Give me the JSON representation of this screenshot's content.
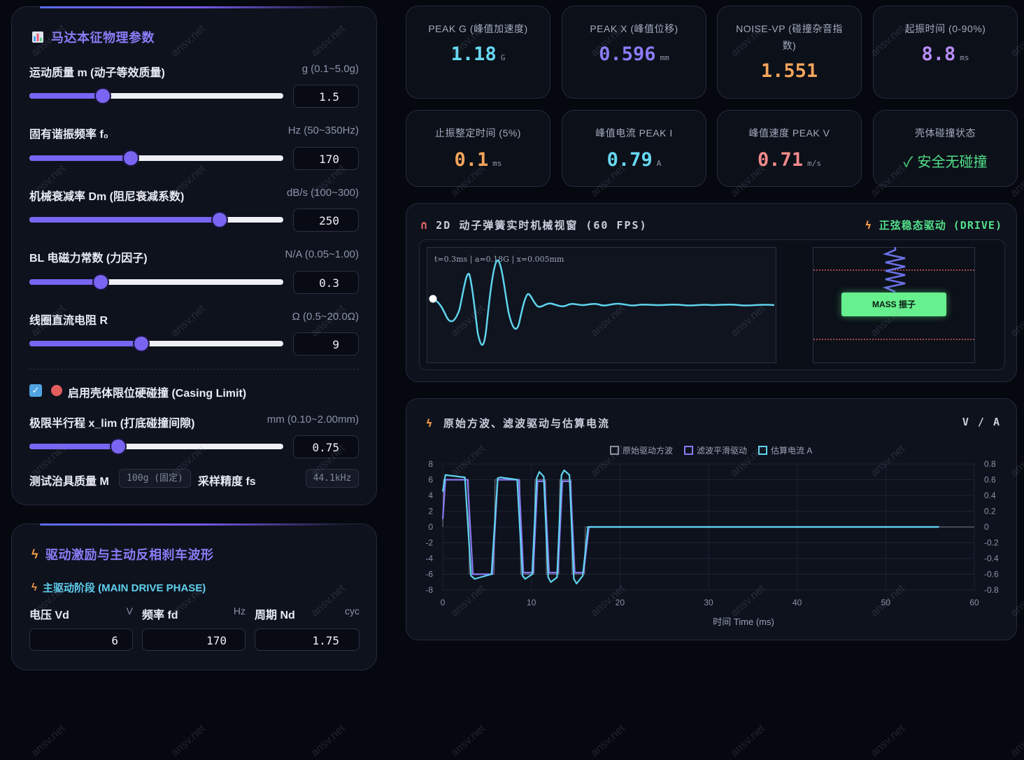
{
  "params_panel": {
    "title": "马达本征物理参数",
    "mass": {
      "label": "运动质量 m (动子等效质量)",
      "unit": "g (0.1~5.0g)",
      "value": "1.5",
      "level": 0.29
    },
    "freq": {
      "label": "固有谐振频率 f₀",
      "unit": "Hz (50~350Hz)",
      "value": "170",
      "level": 0.4
    },
    "damping": {
      "label": "机械衰减率 Dm (阻尼衰减系数)",
      "unit": "dB/s (100~300)",
      "value": "250",
      "level": 0.75
    },
    "bl": {
      "label": "BL 电磁力常数 (力因子)",
      "unit": "N/A (0.05~1.00)",
      "value": "0.3",
      "level": 0.28
    },
    "resistance": {
      "label": "线圈直流电阻 R",
      "unit": "Ω (0.5~20.0Ω)",
      "value": "9",
      "level": 0.44
    },
    "casing": {
      "label": "启用壳体限位硬碰撞 (Casing Limit)",
      "checked": true
    },
    "xlim": {
      "label": "极限半行程 x_lim (打底碰撞间隙)",
      "unit": "mm (0.10~2.00mm)",
      "value": "0.75",
      "level": 0.35
    },
    "fixture": {
      "label": "测试治具质量 M",
      "value": "100g (固定)"
    },
    "sampling": {
      "label": "采样精度 fs",
      "value": "44.1kHz"
    }
  },
  "drive_panel": {
    "title": "驱动激励与主动反相刹车波形",
    "phase": "主驱动阶段 (MAIN DRIVE PHASE)",
    "voltage": {
      "label": "电压 Vd",
      "unit": "V",
      "value": "6"
    },
    "frequency": {
      "label": "频率 fd",
      "unit": "Hz",
      "value": "170"
    },
    "cycles": {
      "label": "周期 Nd",
      "unit": "cyc",
      "value": "1.75"
    }
  },
  "stats": [
    {
      "label": "PEAK G (峰值加速度)",
      "value": "1.18",
      "unit": "G",
      "color": "#67d8f2"
    },
    {
      "label": "PEAK X (峰值位移)",
      "value": "0.596",
      "unit": "mm",
      "color": "#8c7cf6"
    },
    {
      "label": "NOISE-VP (碰撞杂音指数)",
      "value": "1.551",
      "unit": "",
      "color": "#f3a55b"
    },
    {
      "label": "起振时间 (0-90%)",
      "value": "8.8",
      "unit": "ms",
      "color": "#b78cf4"
    },
    {
      "label": "止振整定时间 (5%)",
      "value": "0.1",
      "unit": "ms",
      "color": "#f3a55b"
    },
    {
      "label": "峰值电流 PEAK I",
      "value": "0.79",
      "unit": "A",
      "color": "#67d8f2"
    },
    {
      "label": "峰值速度 PEAK V",
      "value": "0.71",
      "unit": "m/s",
      "color": "#f28a8a"
    },
    {
      "label": "壳体碰撞状态",
      "value": "✓ 安全无碰撞",
      "unit": "",
      "color": "#52e08a"
    }
  ],
  "viewer": {
    "title": "2D 动子弹簧实时机械视窗 (60 FPS)",
    "mode": "正弦稳态驱动 (DRIVE)",
    "readout": "t=0.3ms | a=0.18G | x=0.005mm",
    "mass_label": "MASS 振子"
  },
  "chart_panel": {
    "title": "原始方波、滤波驱动与估算电流",
    "units": "V / A"
  },
  "chart_data": {
    "type": "line",
    "xlabel": "时间 Time (ms)",
    "ylabel": "",
    "xlim": [
      0,
      60
    ],
    "ylim": [
      -8,
      8
    ],
    "y2lim": [
      -0.8,
      0.8
    ],
    "x_ticks": [
      "0",
      "10",
      "20",
      "30",
      "40",
      "50",
      "60"
    ],
    "y_ticks": [
      "8",
      "6",
      "4",
      "2",
      "0",
      "-2",
      "-4",
      "-6",
      "-8"
    ],
    "y2_ticks": [
      "0.8",
      "0.6",
      "0.4",
      "0.2",
      "0",
      "-0.2",
      "-0.4",
      "-0.6",
      "-0.8"
    ],
    "grid": true,
    "legend": "top-center",
    "series": [
      {
        "name": "原始驱动方波",
        "color": "#8a8f9c",
        "x": [
          0,
          0.1,
          2.9,
          3.0,
          5.8,
          5.9,
          8.7,
          8.8,
          10.3,
          10.4,
          11.6,
          11.7,
          13.1,
          13.2,
          14.5,
          14.6,
          16.0,
          16.1,
          60
        ],
        "y": [
          0,
          6,
          6,
          -6,
          -6,
          6,
          6,
          -6,
          -6,
          6,
          6,
          -6,
          -6,
          6,
          6,
          -6,
          -6,
          0,
          0
        ]
      },
      {
        "name": "滤波平滑驱动",
        "color": "#8a7af4",
        "x": [
          0,
          0.3,
          2.8,
          3.4,
          5.6,
          6.2,
          8.6,
          9.1,
          10.2,
          10.7,
          11.5,
          12.0,
          13.0,
          13.5,
          14.4,
          14.9,
          15.9,
          16.5,
          17.0,
          56
        ],
        "y": [
          1.0,
          6.0,
          6.0,
          -6.0,
          -6.0,
          6.0,
          6.0,
          -5.8,
          -5.8,
          5.8,
          5.8,
          -5.8,
          -5.8,
          5.8,
          5.8,
          -5.8,
          -5.8,
          0.0,
          0.0,
          0.0
        ]
      },
      {
        "name": "估算电流 A",
        "color": "#5fd3ee",
        "x": [
          0,
          0.3,
          2.5,
          3.2,
          3.6,
          5.5,
          6.2,
          6.5,
          8.4,
          9.0,
          9.3,
          10.1,
          10.6,
          10.9,
          11.4,
          11.9,
          12.2,
          12.9,
          13.4,
          13.7,
          14.3,
          14.8,
          15.1,
          15.8,
          16.4,
          17.2,
          56
        ],
        "y": [
          0.45,
          0.66,
          0.63,
          -0.62,
          -0.66,
          -0.6,
          0.62,
          0.63,
          0.6,
          -0.62,
          -0.66,
          -0.6,
          0.62,
          0.7,
          0.64,
          -0.64,
          -0.7,
          -0.64,
          0.66,
          0.72,
          0.66,
          -0.66,
          -0.72,
          -0.62,
          0.0,
          0.0,
          0.0
        ]
      }
    ]
  },
  "watermark": "ansv.net"
}
